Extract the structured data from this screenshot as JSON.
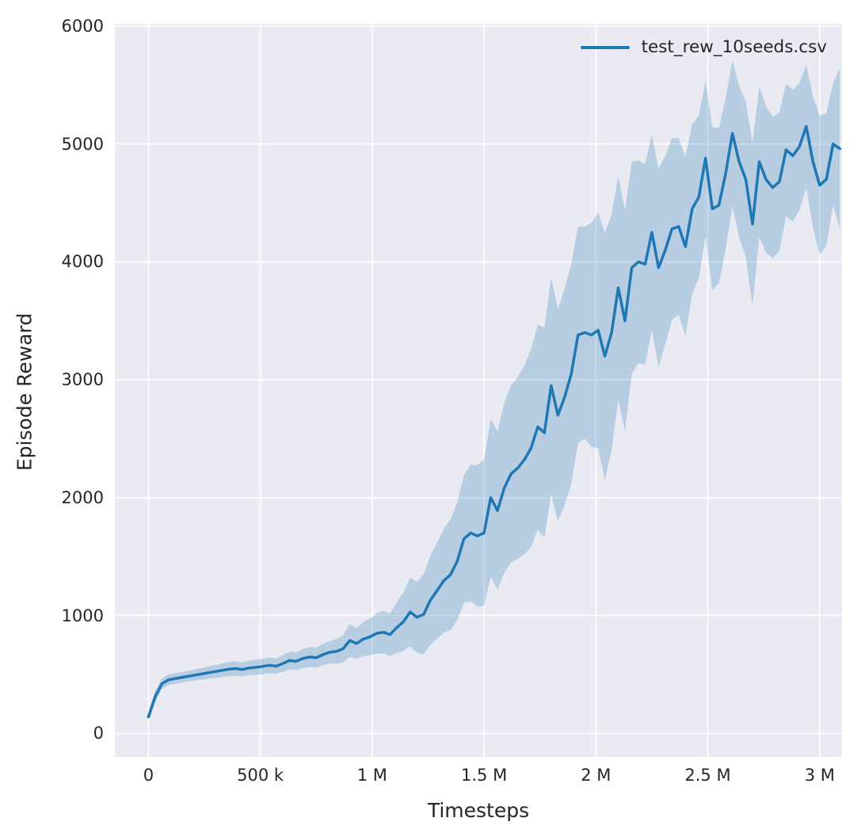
{
  "chart_data": {
    "type": "line",
    "title": "",
    "xlabel": "Timesteps",
    "ylabel": "Episode Reward",
    "grid": true,
    "legend_position": "upper right",
    "plot_bg": "#eaeaf2",
    "grid_color": "#ffffff",
    "text_color": "#262626",
    "xlim": [
      -150000,
      3100000
    ],
    "ylim": [
      -200,
      6020
    ],
    "x_ticks": [
      0,
      500000,
      1000000,
      1500000,
      2000000,
      2500000,
      3000000
    ],
    "x_tick_labels": [
      "0",
      "500 k",
      "1 M",
      "1.5 M",
      "2 M",
      "2.5 M",
      "3 M"
    ],
    "y_ticks": [
      0,
      1000,
      2000,
      3000,
      4000,
      5000,
      6000
    ],
    "y_tick_labels": [
      "0",
      "1000",
      "2000",
      "3000",
      "4000",
      "5000",
      "6000"
    ],
    "series": [
      {
        "name": "test_rew_10seeds.csv",
        "color": "#1f77b4",
        "band_color": "#1f77b4",
        "band_opacity": 0.25,
        "x_start": 0,
        "x_step": 30000,
        "mean": [
          140,
          310,
          420,
          455,
          465,
          475,
          485,
          495,
          505,
          515,
          525,
          535,
          545,
          550,
          542,
          555,
          560,
          568,
          578,
          570,
          592,
          618,
          612,
          635,
          648,
          642,
          668,
          688,
          695,
          718,
          788,
          762,
          800,
          818,
          848,
          858,
          838,
          898,
          948,
          1030,
          985,
          1010,
          1130,
          1210,
          1295,
          1345,
          1460,
          1650,
          1700,
          1675,
          1700,
          2000,
          1890,
          2080,
          2200,
          2250,
          2320,
          2420,
          2600,
          2550,
          2950,
          2700,
          2850,
          3050,
          3380,
          3400,
          3380,
          3420,
          3200,
          3400,
          3780,
          3500,
          3950,
          4000,
          3980,
          4250,
          3950,
          4100,
          4280,
          4300,
          4130,
          4450,
          4550,
          4880,
          4450,
          4480,
          4750,
          5090,
          4850,
          4700,
          4320,
          4850,
          4700,
          4630,
          4680,
          4950,
          4900,
          4980,
          5150,
          4850,
          4650,
          4700,
          5000,
          4960
        ],
        "band_halfwidth": [
          30,
          50,
          45,
          45,
          45,
          45,
          45,
          48,
          50,
          52,
          55,
          58,
          60,
          62,
          60,
          62,
          65,
          66,
          68,
          66,
          70,
          75,
          75,
          80,
          85,
          85,
          90,
          95,
          105,
          115,
          140,
          130,
          145,
          155,
          170,
          180,
          180,
          215,
          250,
          290,
          300,
          340,
          380,
          410,
          440,
          470,
          500,
          540,
          580,
          600,
          620,
          670,
          670,
          720,
          750,
          770,
          800,
          840,
          870,
          890,
          920,
          900,
          920,
          930,
          920,
          900,
          950,
          1000,
          1050,
          1000,
          950,
          940,
          900,
          860,
          850,
          830,
          840,
          800,
          770,
          750,
          760,
          720,
          690,
          660,
          690,
          660,
          640,
          620,
          640,
          660,
          690,
          640,
          620,
          600,
          590,
          560,
          560,
          540,
          520,
          560,
          590,
          560,
          520,
          680
        ]
      }
    ]
  }
}
